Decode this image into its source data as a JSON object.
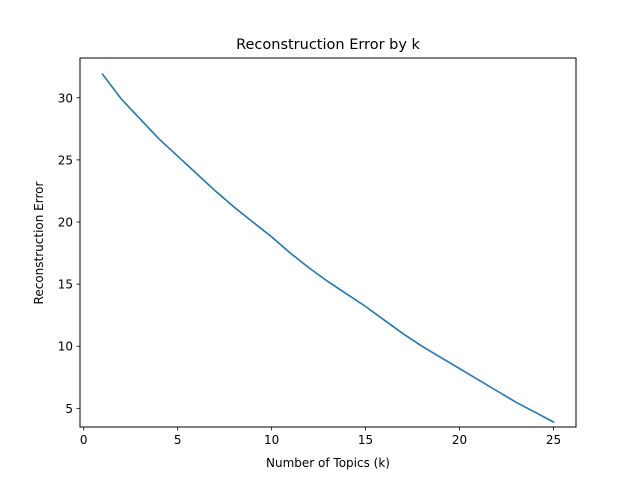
{
  "chart_data": {
    "type": "line",
    "title": "Reconstruction Error by k",
    "xlabel": "Number of Topics (k)",
    "ylabel": "Reconstruction Error",
    "xlim": [
      -0.2,
      26.2
    ],
    "ylim": [
      3.5,
      33.2
    ],
    "xticks": [
      0,
      5,
      10,
      15,
      20,
      25
    ],
    "yticks": [
      5,
      10,
      15,
      20,
      25,
      30
    ],
    "grid": false,
    "line_color": "#1f77b4",
    "series": [
      {
        "x": [
          1,
          2,
          3,
          4,
          5,
          6,
          7,
          8,
          9,
          10,
          11,
          12,
          13,
          14,
          15,
          16,
          17,
          18,
          19,
          20,
          21,
          22,
          23,
          24,
          25
        ],
        "values": [
          31.9,
          29.9,
          28.3,
          26.7,
          25.3,
          23.9,
          22.5,
          21.2,
          20.0,
          18.8,
          17.5,
          16.3,
          15.2,
          14.2,
          13.2,
          12.1,
          11.0,
          10.0,
          9.1,
          8.2,
          7.3,
          6.4,
          5.5,
          4.7,
          3.9
        ]
      }
    ]
  }
}
